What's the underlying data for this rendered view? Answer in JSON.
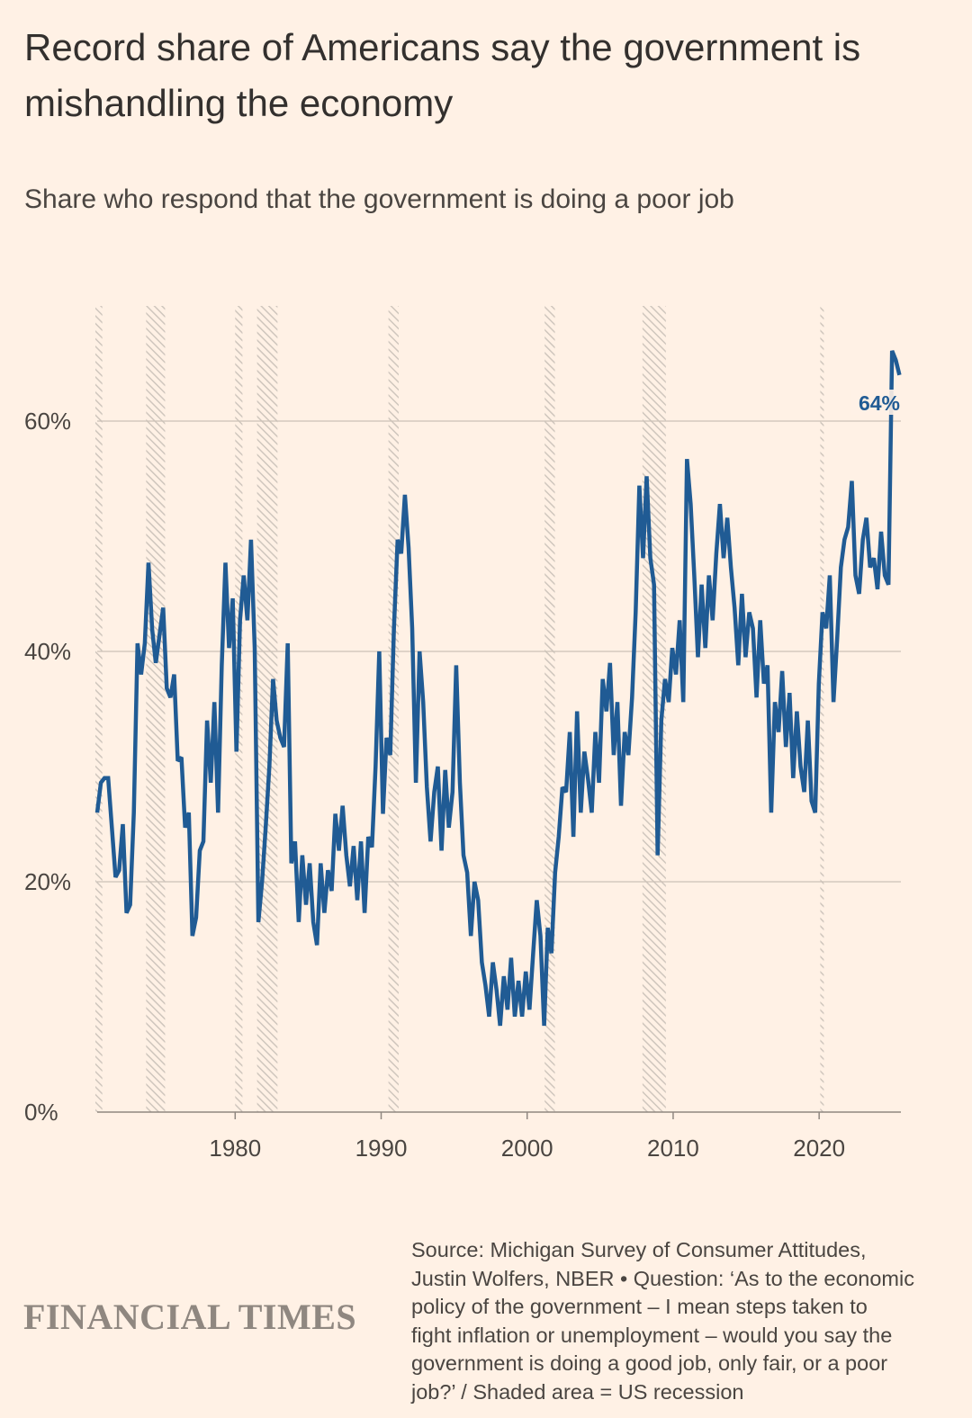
{
  "header": {
    "title": "Record share of Americans say the government is mishandling the economy",
    "subtitle": "Share who respond that the government is doing a poor job"
  },
  "footer": {
    "logo": "FINANCIAL TIMES",
    "source_lines": [
      "Source: Michigan Survey of Consumer Attitudes,",
      "Justin Wolfers, NBER • Question: ‘As to the economic",
      "policy of the government – I mean steps taken to",
      "fight inflation or unemployment – would you say the",
      "government is doing a good job, only fair, or a poor",
      "job?’ / Shaded area = US recession"
    ]
  },
  "colors": {
    "background": "#fff1e5",
    "line": "#205b94",
    "grid": "#ccc1b7",
    "recession": "#cfc6bd",
    "text": "#33302e"
  },
  "chart_data": {
    "type": "line",
    "title": "Record share of Americans say the government is mishandling the economy",
    "subtitle": "Share who respond that the government is doing a poor job",
    "xlabel": "",
    "ylabel": "",
    "xlim": [
      1970.55,
      2025.6
    ],
    "ylim": [
      0,
      70
    ],
    "grid": true,
    "x_ticks": [
      1980,
      1990,
      2000,
      2010,
      2020
    ],
    "x_tick_labels": [
      "1980",
      "1990",
      "2000",
      "2010",
      "2020"
    ],
    "y_ticks": [
      0,
      20,
      40,
      60
    ],
    "y_tick_labels": [
      "0%",
      "20%",
      "40%",
      "60%"
    ],
    "x_start": 1970.55,
    "x_end": 2025.5,
    "x_spacing": "evenly spaced observations",
    "series": [
      {
        "name": "Government doing a poor job (%)",
        "values": [
          26,
          28.6,
          29,
          29,
          24.7,
          20.4,
          21,
          25,
          17.3,
          18,
          26,
          40.7,
          38,
          40.7,
          47.7,
          41.9,
          39,
          41.4,
          43.8,
          36.8,
          36,
          38,
          30.5,
          30.8,
          24.7,
          26,
          15.3,
          16.9,
          22.7,
          23.5,
          34,
          28.6,
          35.6,
          26,
          38.8,
          47.7,
          40.3,
          44.6,
          31.3,
          42.7,
          46.6,
          42.7,
          49.7,
          40.3,
          16.5,
          20,
          24.7,
          30,
          37.6,
          34,
          32.5,
          31.7,
          40.7,
          21.6,
          23.5,
          16.5,
          22.3,
          18,
          21.6,
          16.5,
          14.5,
          21.6,
          17.3,
          21,
          19.2,
          25.9,
          22.7,
          26.6,
          22.3,
          19.6,
          23.1,
          18.4,
          23.5,
          17.3,
          23.9,
          23,
          30,
          40,
          25.9,
          32.5,
          31,
          42,
          49.7,
          48.5,
          53.6,
          49,
          42,
          28.6,
          40,
          35.6,
          28.2,
          23.5,
          27.8,
          30,
          22.7,
          29.7,
          24.7,
          27.8,
          38.8,
          28.6,
          22.3,
          20.8,
          15.3,
          20,
          18.4,
          13,
          11,
          8.3,
          13,
          10.6,
          7.5,
          11.8,
          8.9,
          13.4,
          8.3,
          11.4,
          8.3,
          12.2,
          8.9,
          13.8,
          18.4,
          15.3,
          7.5,
          16,
          13.8,
          20.8,
          23.9,
          28.2,
          27.8,
          33,
          23.9,
          34.8,
          26,
          31.3,
          28.9,
          26,
          33,
          28.6,
          37.6,
          34.8,
          39,
          31,
          35.6,
          26.6,
          33,
          31,
          36,
          43.4,
          54.4,
          48.1,
          55.2,
          48.1,
          45.8,
          22.3,
          34,
          37.6,
          35.6,
          40.3,
          38,
          42.7,
          35.6,
          56.7,
          52.8,
          46.6,
          39.5,
          45.8,
          40.3,
          46.6,
          42.7,
          48.5,
          52.8,
          48.1,
          51.6,
          47.3,
          43.8,
          38.8,
          45,
          39.5,
          43.4,
          42,
          36,
          42.7,
          37.2,
          38.8,
          26,
          35.6,
          33,
          38.3,
          31.7,
          36.4,
          29,
          34.8,
          30,
          27.8,
          34,
          27,
          26,
          37.2,
          43.4,
          42,
          46.6,
          35.6,
          41.1,
          47.3,
          49.7,
          50.8,
          54.8,
          46.6,
          45,
          49.7,
          51.6,
          47.3,
          48.1,
          45.4,
          50.4,
          46.6,
          45.8,
          66.1,
          65.3,
          64
        ]
      }
    ],
    "recessions": [
      [
        1969.9,
        1970.9
      ],
      [
        1973.9,
        1975.2
      ],
      [
        1980.0,
        1980.5
      ],
      [
        1981.5,
        1982.9
      ],
      [
        1990.5,
        1991.2
      ],
      [
        2001.2,
        2001.9
      ],
      [
        2007.9,
        2009.5
      ],
      [
        2020.1,
        2020.3
      ]
    ],
    "annotations": [
      {
        "text": "64%",
        "x": 2025.5,
        "y": 64
      }
    ]
  }
}
